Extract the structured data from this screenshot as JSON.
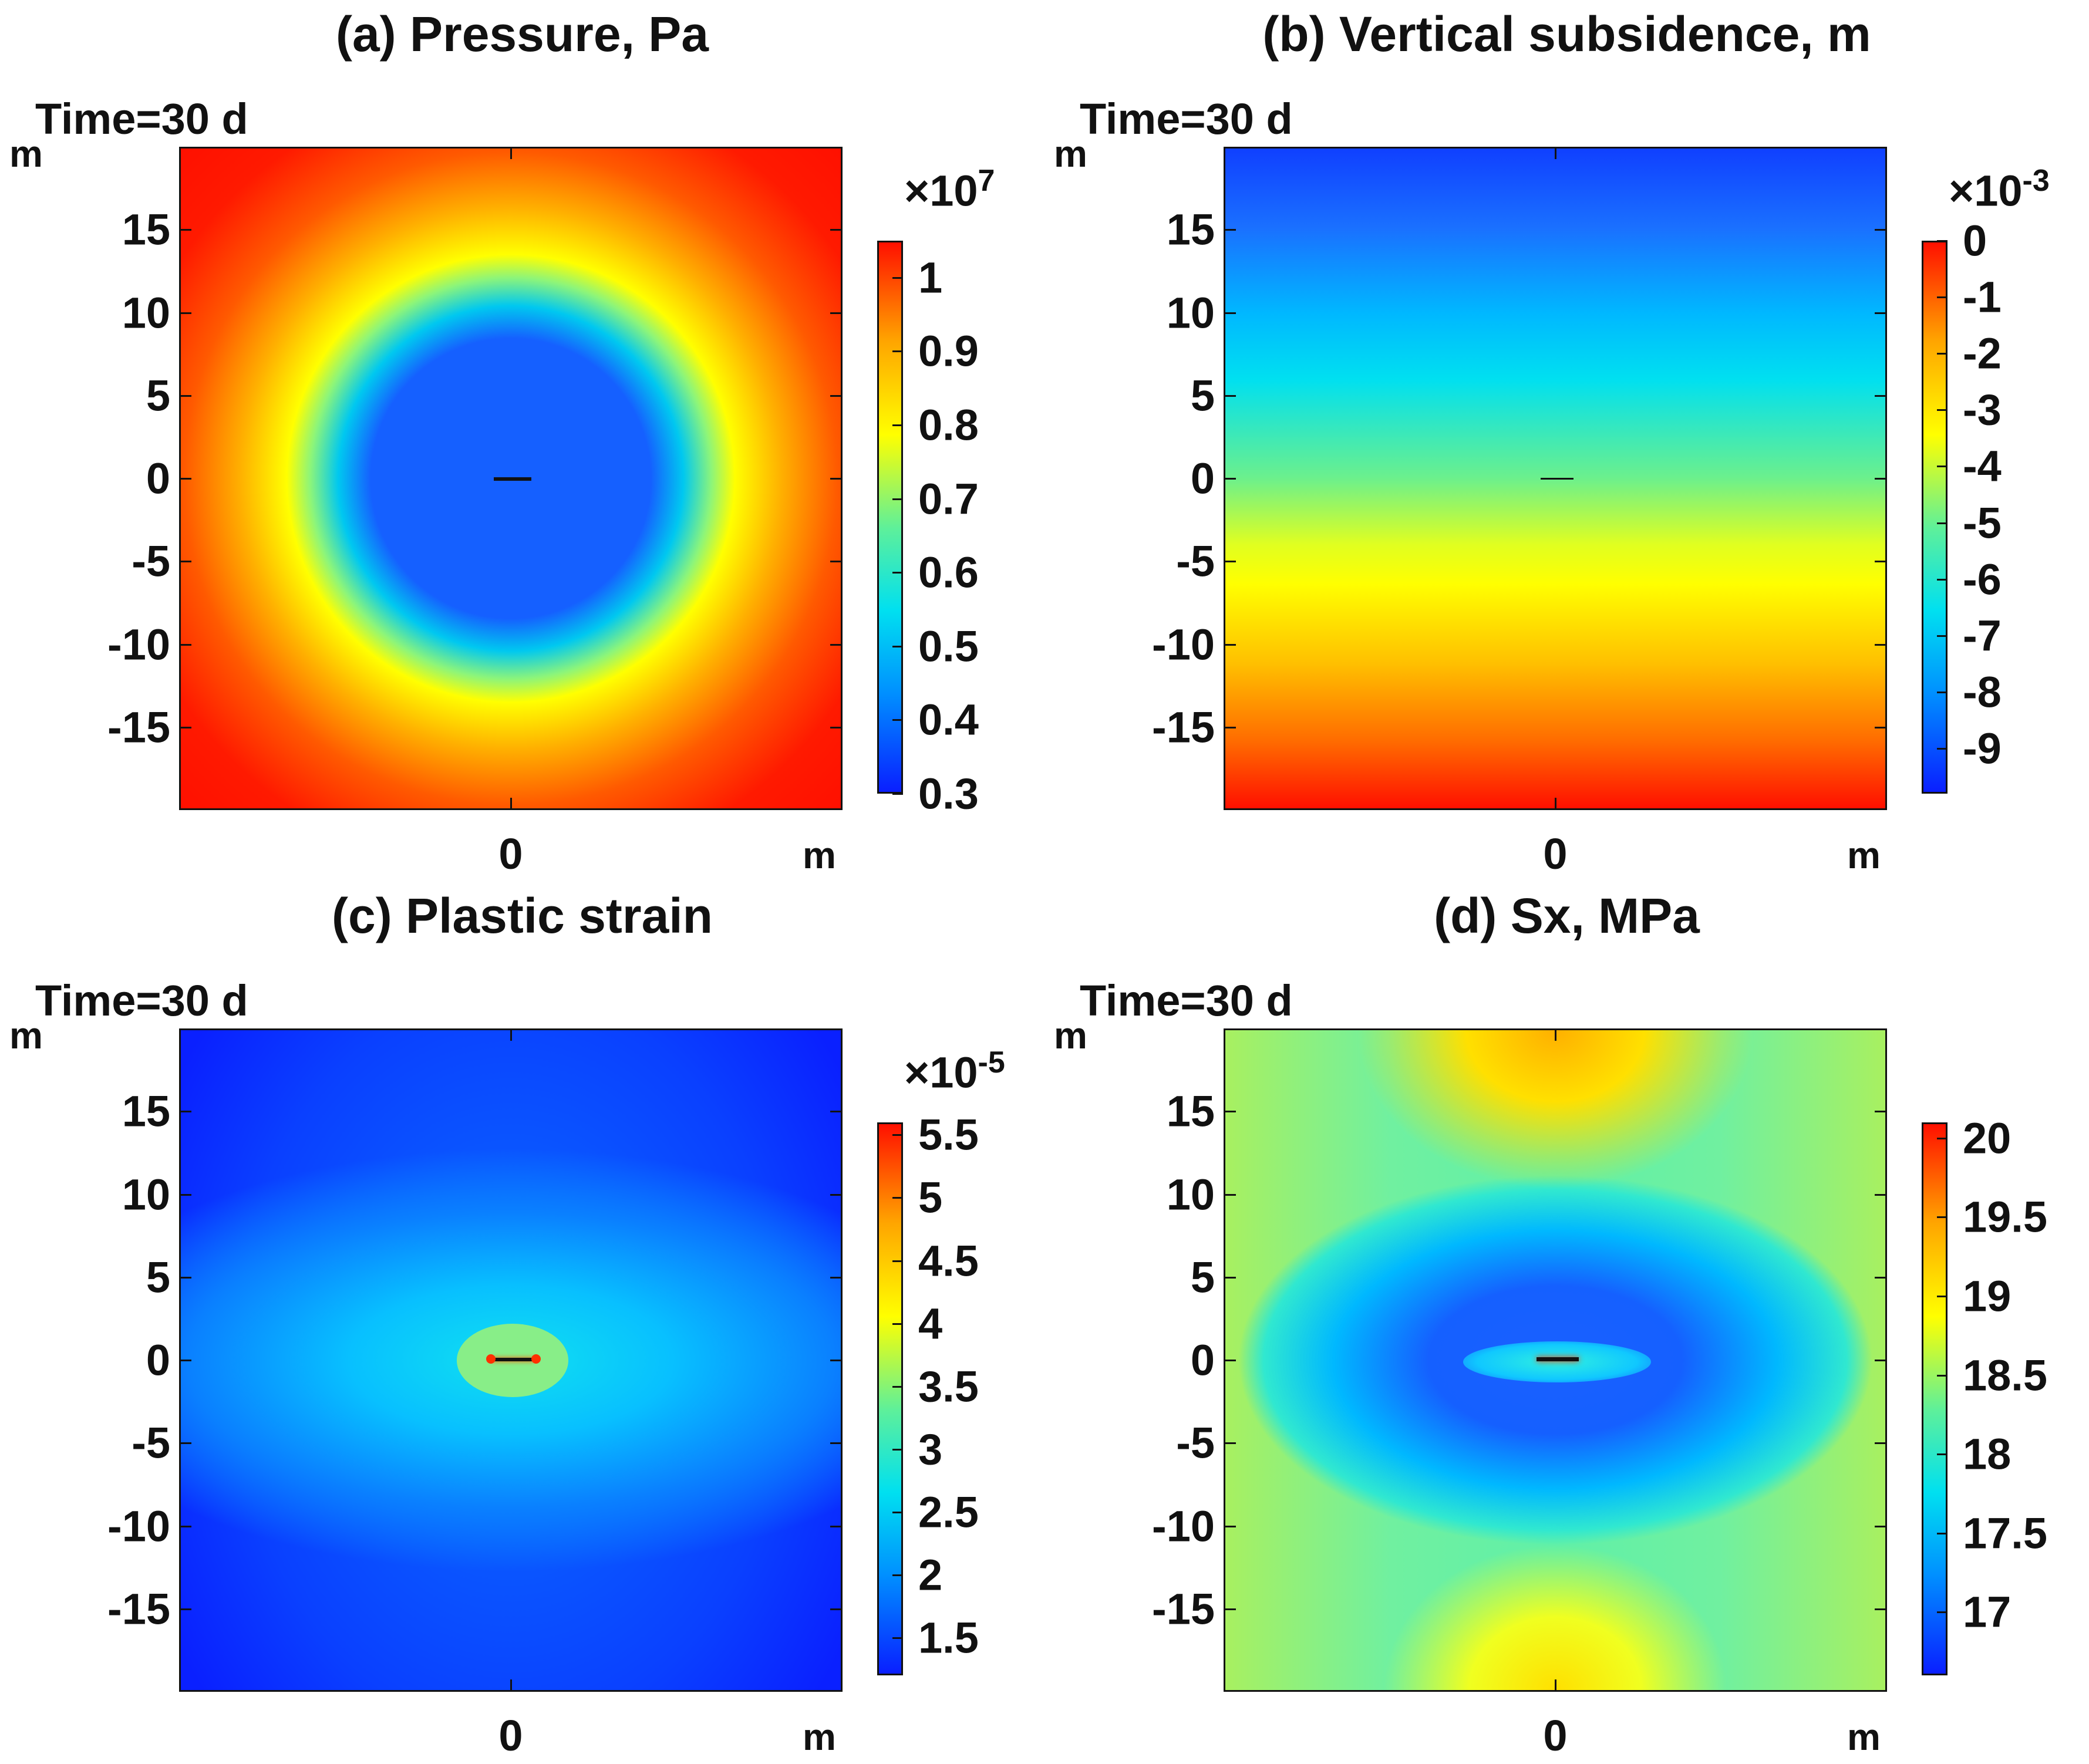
{
  "time_label": "Time=30 d",
  "axis_unit": "m",
  "chart_data": [
    {
      "id": "a",
      "type": "heatmap",
      "title": "(a) Pressure, Pa",
      "time": "Time=30 d",
      "xlabel": "m",
      "ylabel": "m",
      "x_ticks": [
        "0"
      ],
      "y_ticks": [
        "15",
        "10",
        "5",
        "0",
        "-5",
        "-10",
        "-15"
      ],
      "xlim": [
        -20,
        20
      ],
      "ylim": [
        -20,
        20
      ],
      "colorbar": {
        "multiplier_base": "×10",
        "multiplier_exp": "7",
        "range": [
          0.3,
          1.05
        ],
        "ticks": [
          "1",
          "0.9",
          "0.8",
          "0.7",
          "0.6",
          "0.5",
          "0.4",
          "0.3"
        ]
      },
      "field": {
        "kind": "radial",
        "low_center": 0.3,
        "inner_radius": 7,
        "far_value": 1.0
      },
      "colors": {
        "high": "#ff1a00",
        "low": "#1560ff"
      }
    },
    {
      "id": "b",
      "type": "heatmap",
      "title": "(b) Vertical subsidence, m",
      "time": "Time=30 d",
      "xlabel": "m",
      "ylabel": "m",
      "x_ticks": [
        "0"
      ],
      "y_ticks": [
        "15",
        "10",
        "5",
        "0",
        "-5",
        "-10",
        "-15"
      ],
      "xlim": [
        -20,
        20
      ],
      "ylim": [
        -20,
        20
      ],
      "colorbar": {
        "multiplier_base": "×10",
        "multiplier_exp": "-3",
        "range": [
          -9.8,
          0
        ],
        "ticks": [
          "0",
          "-1",
          "-2",
          "-3",
          "-4",
          "-5",
          "-6",
          "-7",
          "-8",
          "-9"
        ]
      },
      "field": {
        "kind": "vertical",
        "top_value": -9.5,
        "bottom_value": 0
      },
      "colors": {
        "high": "#ff1000",
        "low": "#1040ff"
      }
    },
    {
      "id": "c",
      "type": "heatmap",
      "title": "(c) Plastic strain",
      "time": "Time=30 d",
      "xlabel": "m",
      "ylabel": "m",
      "x_ticks": [
        "0"
      ],
      "y_ticks": [
        "15",
        "10",
        "5",
        "0",
        "-5",
        "-10",
        "-15"
      ],
      "xlim": [
        -20,
        20
      ],
      "ylim": [
        -20,
        20
      ],
      "colorbar": {
        "multiplier_base": "×10",
        "multiplier_exp": "-5",
        "range": [
          1.2,
          5.6
        ],
        "ticks": [
          "5.5",
          "5",
          "4.5",
          "4",
          "3.5",
          "3",
          "2.5",
          "2",
          "1.5"
        ]
      },
      "field": {
        "kind": "butterfly",
        "background": 1.4,
        "band_peak": 2.3,
        "core_value": 3.3
      },
      "colors": {
        "high": "#ff1000",
        "low": "#0a1fff"
      }
    },
    {
      "id": "d",
      "type": "heatmap",
      "title": "(d) Sx, MPa",
      "time": "Time=30 d",
      "xlabel": "m",
      "ylabel": "m",
      "x_ticks": [
        "0"
      ],
      "y_ticks": [
        "15",
        "10",
        "5",
        "0",
        "-5",
        "-10",
        "-15"
      ],
      "xlim": [
        -20,
        20
      ],
      "ylim": [
        -20,
        20
      ],
      "colorbar": {
        "multiplier_base": "",
        "multiplier_exp": "",
        "range": [
          16.6,
          20.1
        ],
        "ticks": [
          "20",
          "19.5",
          "19",
          "18.5",
          "18",
          "17.5",
          "17"
        ]
      },
      "field": {
        "kind": "ellipse",
        "background": 18.3,
        "ring_low": 16.8,
        "cap_high": 19.3
      },
      "colors": {
        "high": "#ff1000",
        "low": "#0a1fff"
      }
    }
  ]
}
